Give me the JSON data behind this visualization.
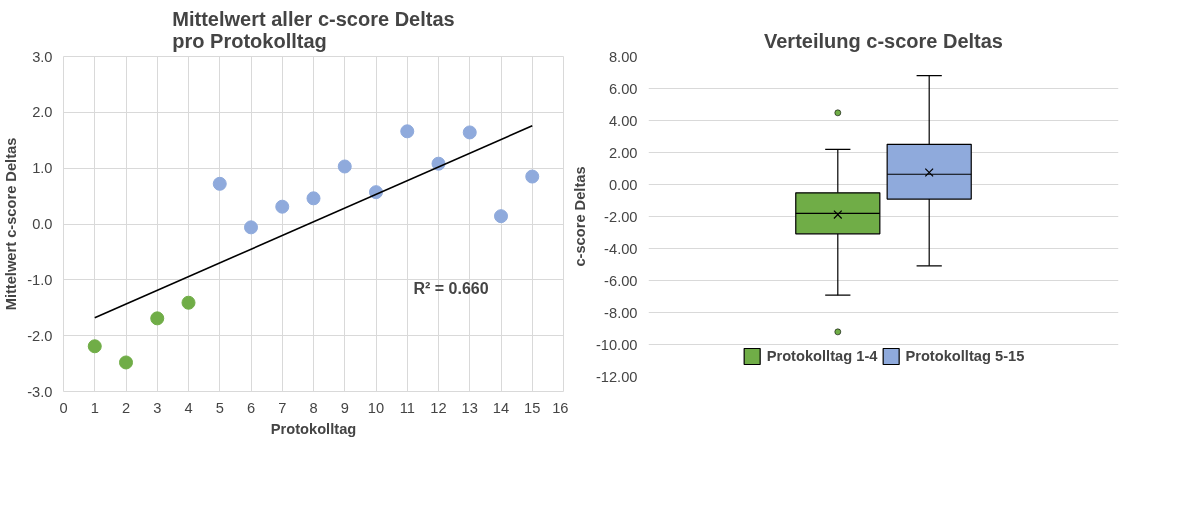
{
  "chart_data": [
    {
      "type": "scatter",
      "title": "Mittelwert aller c-score Deltas\npro Protokolltag",
      "xlabel": "Protokolltag",
      "ylabel": "Mittelwert c-score Deltas",
      "xlim": [
        0,
        16
      ],
      "xticks": [
        0,
        1,
        2,
        3,
        4,
        5,
        6,
        7,
        8,
        9,
        10,
        11,
        12,
        13,
        14,
        15,
        16
      ],
      "ylim": [
        -3,
        3
      ],
      "yticks": [
        {
          "value": -3,
          "label": "-3.0"
        },
        {
          "value": -2,
          "label": "-2.0"
        },
        {
          "value": -1,
          "label": "-1.0"
        },
        {
          "value": 0,
          "label": "0.0"
        },
        {
          "value": 1,
          "label": "1.0"
        },
        {
          "value": 2,
          "label": "2.0"
        },
        {
          "value": 3,
          "label": "3.0"
        }
      ],
      "grid": true,
      "marker": "circle",
      "series": [
        {
          "color": "#70ad47",
          "x": [
            1,
            2,
            3,
            4
          ],
          "values": [
            -2.19,
            -2.48,
            -1.69,
            -1.41
          ]
        },
        {
          "color": "#8faadc",
          "x": [
            5,
            6,
            7,
            8,
            9,
            10,
            11,
            12,
            13,
            14,
            15
          ],
          "values": [
            0.72,
            -0.06,
            0.31,
            0.46,
            1.03,
            0.57,
            1.66,
            1.08,
            1.64,
            0.14,
            0.85
          ]
        },
        {
          "type": "line",
          "marker": "none",
          "color": "#000000",
          "x": [
            1,
            15
          ],
          "values": [
            -1.68,
            1.76
          ]
        }
      ],
      "annotations": [
        "R² = 0.660"
      ]
    },
    {
      "type": "box",
      "title": "Verteilung c-score Deltas",
      "ylabel": "c-score Deltas",
      "categories": [
        null
      ],
      "ylim": [
        -12,
        8
      ],
      "yticks": [
        {
          "value": -12,
          "label": "-12.00"
        },
        {
          "value": -10,
          "label": "-10.00"
        },
        {
          "value": -8,
          "label": "-8.00"
        },
        {
          "value": -6,
          "label": "-6.00"
        },
        {
          "value": -4,
          "label": "-4.00"
        },
        {
          "value": -2,
          "label": "-2.00"
        },
        {
          "value": 0,
          "label": "0.00"
        },
        {
          "value": 2,
          "label": "2.00"
        },
        {
          "value": 4,
          "label": "4.00"
        },
        {
          "value": 6,
          "label": "6.00"
        },
        {
          "value": 8,
          "label": "8.00"
        }
      ],
      "grid": "y",
      "legend": "bottom",
      "tick_labels": "y",
      "series": [
        {
          "name": "Protokolltag 1-4",
          "color": "#70ad47",
          "boxes": [
            {
              "low": -6.92,
              "q1": -3.08,
              "median": -1.8,
              "q3": -0.52,
              "high": 2.19,
              "mean": -1.88,
              "outliers": [
                4.48,
                -9.21
              ]
            }
          ]
        },
        {
          "name": "Protokolltag 5-15",
          "color": "#8faadc",
          "boxes": [
            {
              "low": -5.08,
              "q1": -0.91,
              "median": 0.64,
              "q3": 2.51,
              "high": 6.81,
              "mean": 0.75
            }
          ]
        }
      ]
    }
  ]
}
